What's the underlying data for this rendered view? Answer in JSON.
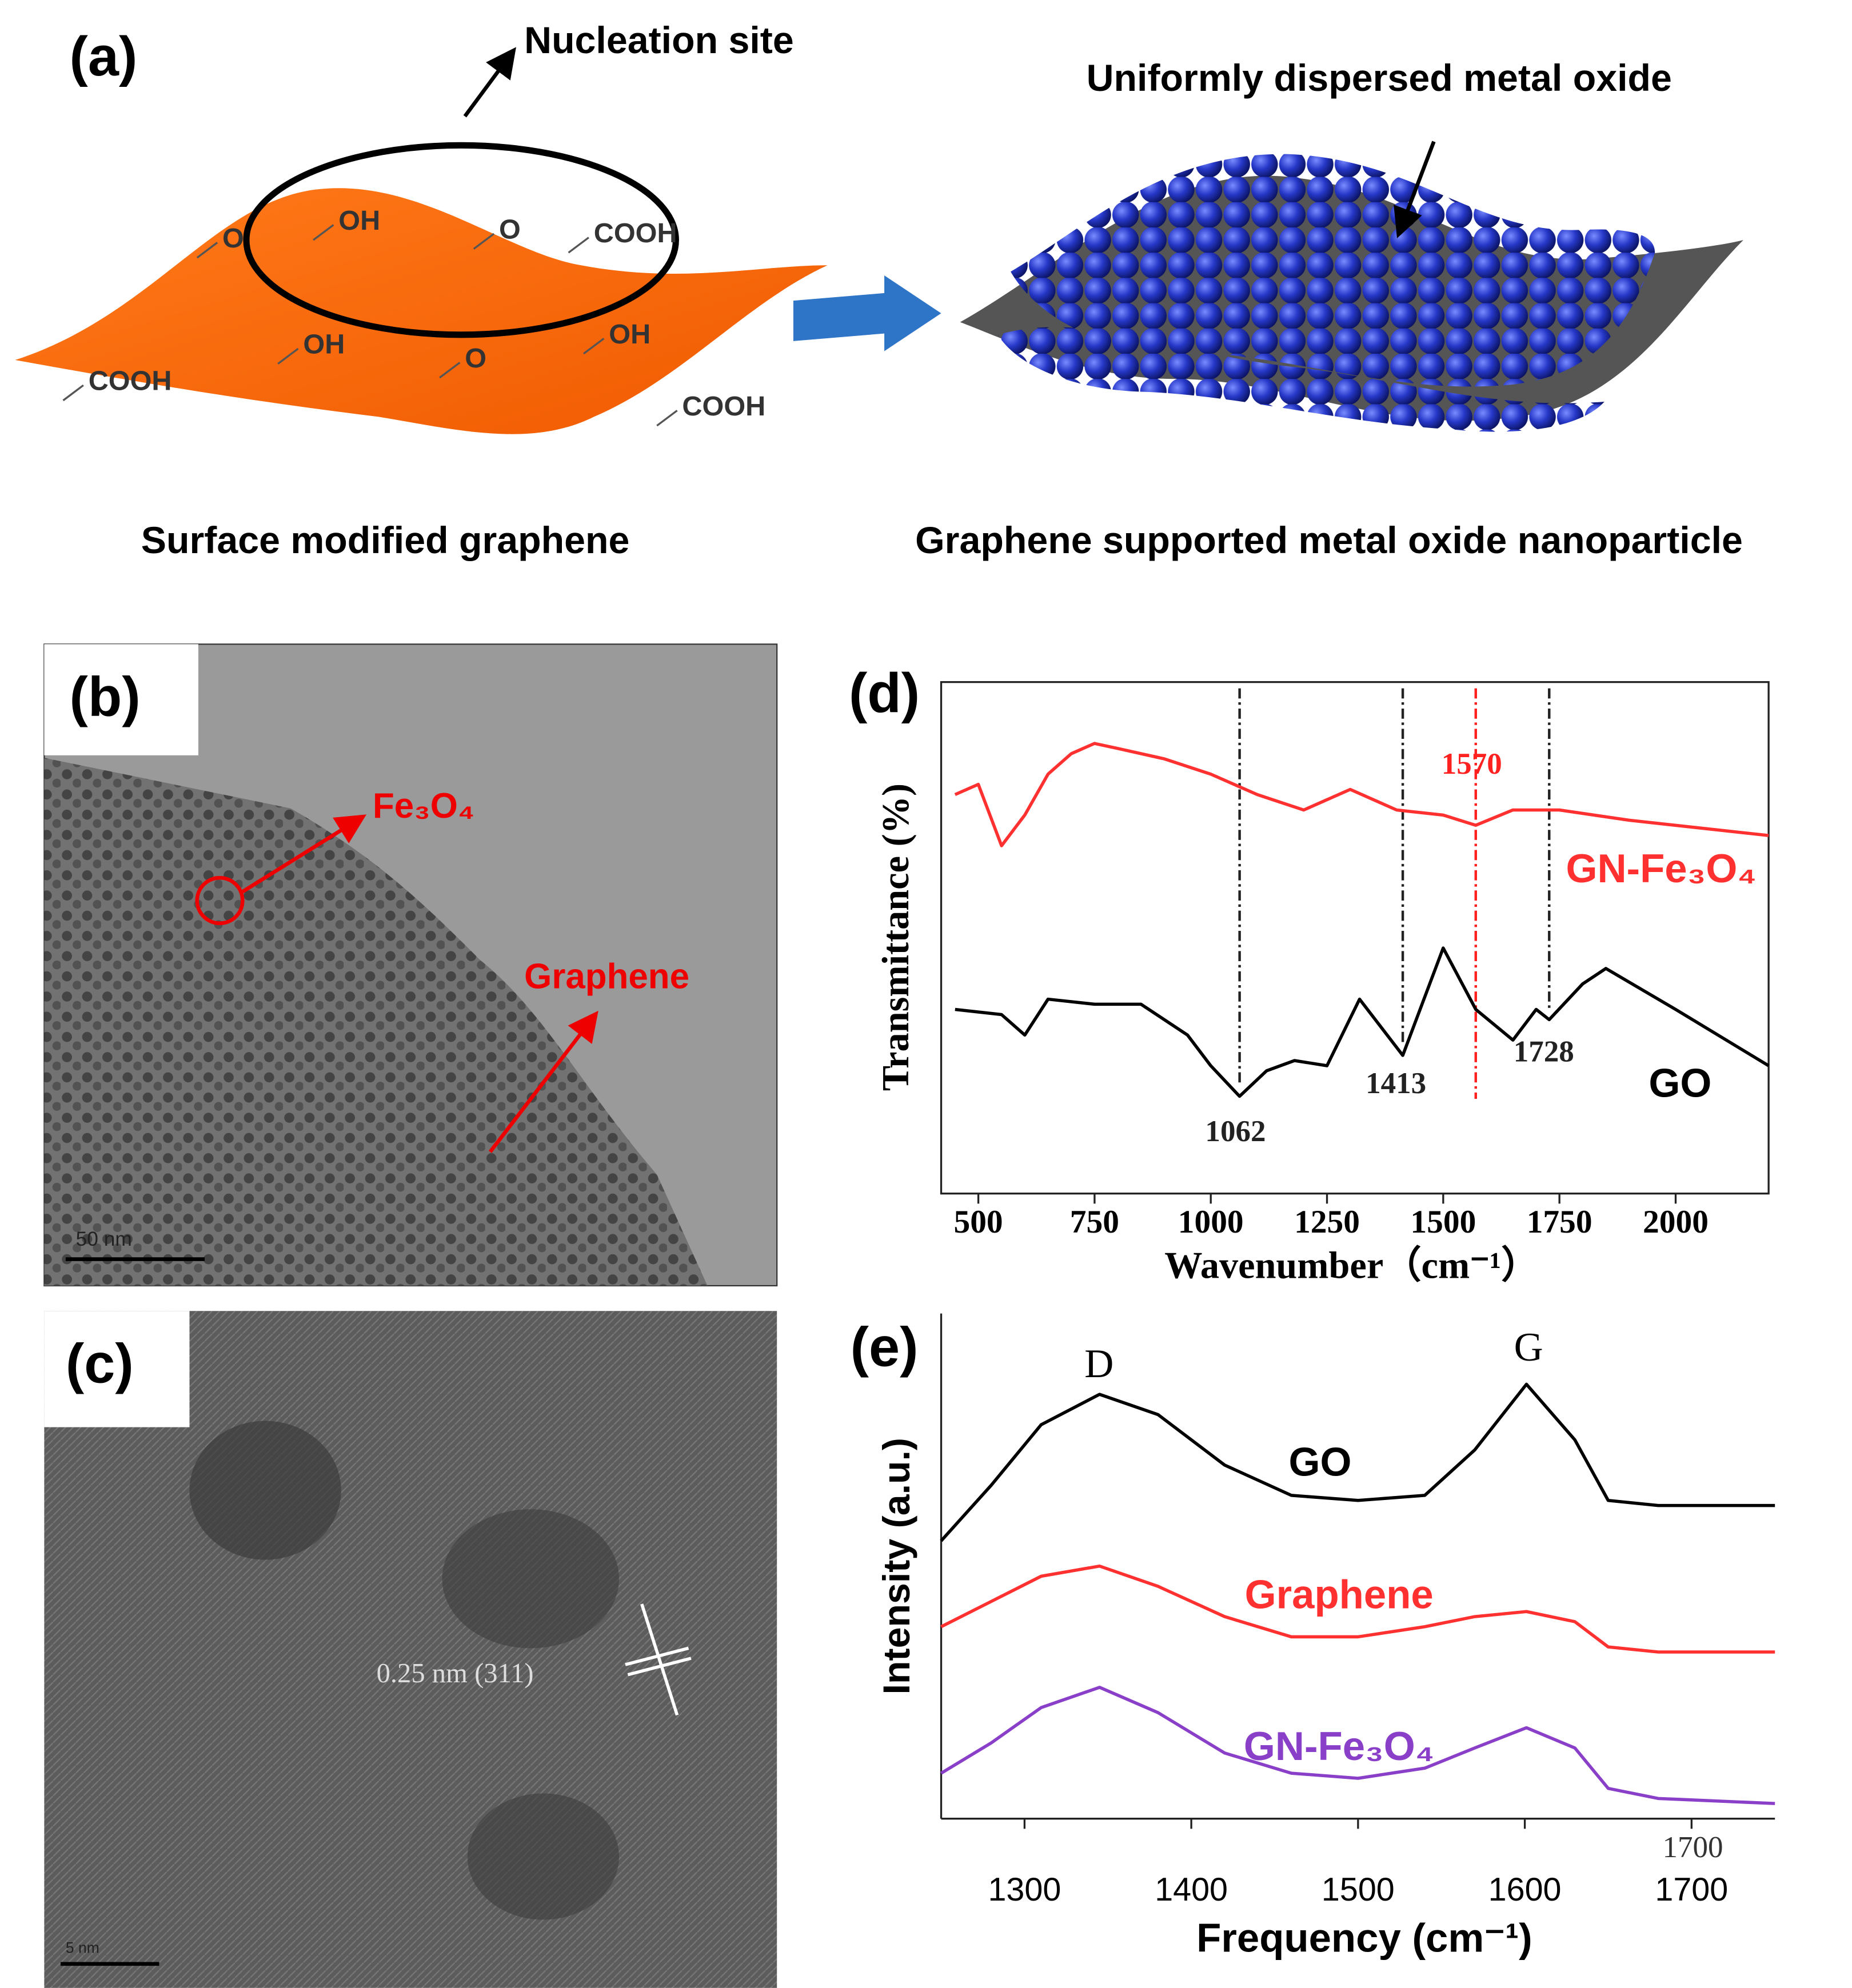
{
  "panel_a": {
    "label": "(a)",
    "nucleation_label": "Nucleation site",
    "dispersed_label": "Uniformly dispersed metal oxide",
    "left_caption": "Surface modified graphene",
    "right_caption": "Graphene supported metal oxide nanoparticle",
    "groups": [
      "OH",
      "COOH",
      "O",
      "O",
      "OH",
      "OH",
      "O",
      "COOH",
      "COOH"
    ]
  },
  "panel_b": {
    "label": "(b)",
    "particle_label": "Fe₃O₄",
    "sheet_label": "Graphene",
    "scale_bar": "50 nm"
  },
  "panel_c": {
    "label": "(c)",
    "lattice_label": "0.25 nm (311)",
    "scale_bar": "5 nm"
  },
  "chart_data": [
    {
      "type": "line",
      "panel_label": "(d)",
      "x_label": "Wavenumber（cm⁻¹）",
      "y_label": "Transmittance (%)",
      "xlim": [
        420,
        2200
      ],
      "xticks": [
        500,
        750,
        1000,
        1250,
        1500,
        1750,
        2000
      ],
      "ylim": [
        0,
        100
      ],
      "vlines": [
        {
          "value": 1062,
          "color": "#222222"
        },
        {
          "value": 1413,
          "color": "#222222"
        },
        {
          "value": 1570,
          "color": "#ff2020"
        },
        {
          "value": 1728,
          "color": "#222222"
        }
      ],
      "series": [
        {
          "name": "GN-Fe₃O₄",
          "color": "#ff3030",
          "x": [
            450,
            500,
            550,
            600,
            650,
            700,
            750,
            800,
            900,
            1000,
            1100,
            1200,
            1300,
            1400,
            1500,
            1570,
            1650,
            1750,
            1900,
            2100,
            2200
          ],
          "values": [
            78,
            80,
            68,
            74,
            82,
            86,
            88,
            87,
            85,
            82,
            78,
            75,
            79,
            75,
            74,
            72,
            75,
            75,
            73,
            71,
            70
          ]
        },
        {
          "name": "GO",
          "color": "#000000",
          "x": [
            450,
            550,
            600,
            650,
            750,
            850,
            950,
            1000,
            1062,
            1120,
            1180,
            1250,
            1320,
            1413,
            1500,
            1570,
            1650,
            1700,
            1728,
            1800,
            1850,
            2000,
            2200
          ],
          "values": [
            36,
            35,
            31,
            38,
            37,
            37,
            31,
            25,
            19,
            24,
            26,
            25,
            38,
            27,
            48,
            36,
            30,
            36,
            34,
            41,
            44,
            36,
            25
          ]
        }
      ]
    },
    {
      "type": "line",
      "panel_label": "(e)",
      "x_label": "Frequency (cm⁻¹)",
      "y_label": "Intensity (a.u.)",
      "xlim": [
        1250,
        1750
      ],
      "xticks": [
        1300,
        1400,
        1500,
        1600,
        1700
      ],
      "extra_tick_label": "1700",
      "ylim": [
        0,
        100
      ],
      "annotations": [
        "D",
        "G"
      ],
      "x": [
        1250,
        1280,
        1310,
        1345,
        1380,
        1420,
        1460,
        1500,
        1540,
        1570,
        1601,
        1630,
        1650,
        1680,
        1750
      ],
      "series": [
        {
          "name": "GO",
          "color": "#000000",
          "values": [
            55,
            66,
            78,
            84,
            80,
            70,
            64,
            63,
            64,
            73,
            86,
            75,
            63,
            62,
            62
          ]
        },
        {
          "name": "Graphene",
          "color": "#ff3030",
          "values": [
            38,
            43,
            48,
            50,
            46,
            40,
            36,
            36,
            38,
            40,
            41,
            39,
            34,
            33,
            33
          ]
        },
        {
          "name": "GN-Fe₃O₄",
          "color": "#8a3fc8",
          "values": [
            9,
            15,
            22,
            26,
            21,
            13,
            9,
            8,
            10,
            14,
            18,
            14,
            6,
            4,
            3
          ]
        }
      ]
    }
  ]
}
